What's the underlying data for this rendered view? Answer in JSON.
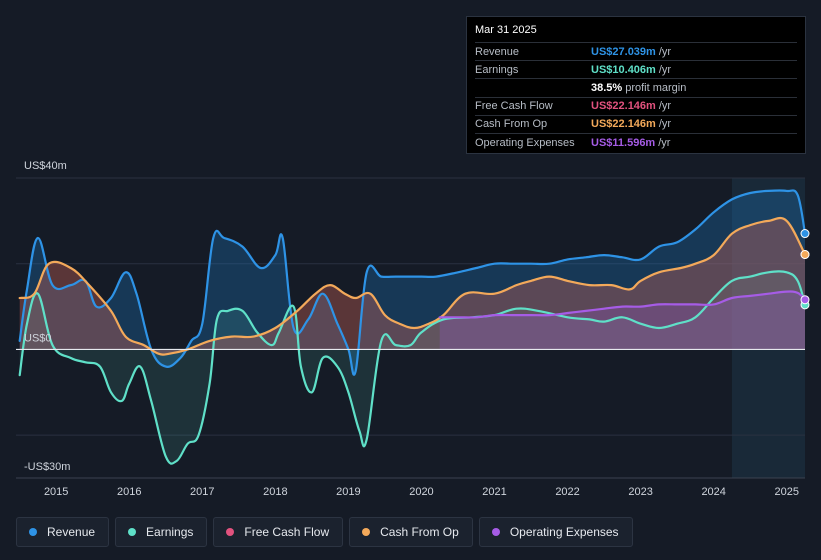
{
  "tooltip": {
    "date": "Mar 31 2025",
    "rows": [
      {
        "label": "Revenue",
        "value": "US$27.039m",
        "unit": "/yr",
        "color": "#2e93e6"
      },
      {
        "label": "Earnings",
        "value": "US$10.406m",
        "unit": "/yr",
        "color": "#5fe0c8"
      },
      {
        "label": "Free Cash Flow",
        "value": "US$22.146m",
        "unit": "/yr",
        "color": "#e2527e"
      },
      {
        "label": "Cash From Op",
        "value": "US$22.146m",
        "unit": "/yr",
        "color": "#f3a95a"
      },
      {
        "label": "Operating Expenses",
        "value": "US$11.596m",
        "unit": "/yr",
        "color": "#a65ce6"
      }
    ],
    "margin_value": "38.5%",
    "margin_label": "profit margin"
  },
  "legend": [
    {
      "label": "Revenue",
      "color": "#2e93e6"
    },
    {
      "label": "Earnings",
      "color": "#5fe0c8"
    },
    {
      "label": "Free Cash Flow",
      "color": "#e2527e"
    },
    {
      "label": "Cash From Op",
      "color": "#f3a95a"
    },
    {
      "label": "Operating Expenses",
      "color": "#a65ce6"
    }
  ],
  "chart_data": {
    "type": "line",
    "title": "",
    "ylabel": "",
    "y_labels": [
      "US$40m",
      "US$0",
      "-US$30m"
    ],
    "ylim": [
      -30,
      40
    ],
    "xlim": [
      2014.45,
      2025.25
    ],
    "x_ticks": [
      "2015",
      "2016",
      "2017",
      "2018",
      "2019",
      "2020",
      "2021",
      "2022",
      "2023",
      "2024",
      "2025"
    ],
    "x_tick_values": [
      2015,
      2016,
      2017,
      2018,
      2019,
      2020,
      2021,
      2022,
      2023,
      2024,
      2025
    ],
    "highlight_start": 2024.25,
    "series": [
      {
        "name": "Revenue",
        "color": "#2e93e6",
        "x": [
          2014.5,
          2014.6,
          2014.75,
          2014.95,
          2015.2,
          2015.4,
          2015.55,
          2015.75,
          2015.95,
          2016.1,
          2016.3,
          2016.5,
          2016.7,
          2016.85,
          2017.0,
          2017.15,
          2017.3,
          2017.55,
          2017.8,
          2018.0,
          2018.1,
          2018.25,
          2018.45,
          2018.65,
          2018.85,
          2019.0,
          2019.1,
          2019.25,
          2019.45,
          2019.65,
          2019.85,
          2020.0,
          2020.2,
          2020.5,
          2020.75,
          2021.0,
          2021.25,
          2021.5,
          2021.75,
          2022.0,
          2022.25,
          2022.5,
          2022.75,
          2023.0,
          2023.25,
          2023.5,
          2023.75,
          2024.0,
          2024.25,
          2024.5,
          2024.75,
          2025.0,
          2025.15,
          2025.25
        ],
        "values": [
          2,
          14,
          26,
          15,
          15,
          16,
          10,
          12,
          18,
          13,
          0,
          -4,
          -2,
          2,
          6,
          26,
          26,
          24,
          19,
          22,
          26,
          5,
          7,
          13,
          6,
          0,
          -5,
          18,
          17,
          17,
          17,
          17,
          17,
          18,
          19,
          20,
          20,
          20,
          20,
          21,
          21.5,
          22,
          21.5,
          21,
          24,
          25,
          28,
          32,
          35,
          36.5,
          37,
          37,
          36,
          27.04
        ]
      },
      {
        "name": "Earnings",
        "color": "#5fe0c8",
        "x": [
          2014.5,
          2014.6,
          2014.75,
          2014.95,
          2015.2,
          2015.4,
          2015.6,
          2015.75,
          2015.9,
          2016.0,
          2016.15,
          2016.3,
          2016.5,
          2016.65,
          2016.8,
          2016.95,
          2017.1,
          2017.2,
          2017.35,
          2017.55,
          2017.75,
          2017.95,
          2018.05,
          2018.25,
          2018.35,
          2018.5,
          2018.65,
          2018.85,
          2019.0,
          2019.15,
          2019.25,
          2019.45,
          2019.65,
          2019.85,
          2020.0,
          2020.3,
          2020.7,
          2021.0,
          2021.3,
          2021.6,
          2022.0,
          2022.3,
          2022.5,
          2022.75,
          2023.0,
          2023.25,
          2023.5,
          2023.75,
          2024.0,
          2024.25,
          2024.5,
          2024.75,
          2025.0,
          2025.15,
          2025.25
        ],
        "values": [
          -6,
          6,
          13,
          1,
          -2,
          -3,
          -4,
          -10,
          -12,
          -8,
          -4,
          -12,
          -25,
          -26,
          -22,
          -20,
          -8,
          7,
          9,
          9,
          4,
          1,
          4,
          10,
          -4,
          -10,
          -2,
          -4,
          -10,
          -19,
          -21,
          2,
          1,
          1,
          4,
          7,
          7.5,
          8,
          9.5,
          9,
          7.5,
          7,
          6.5,
          7.5,
          6,
          5,
          6,
          7.5,
          12,
          16,
          17,
          18,
          18,
          16,
          10.4
        ]
      },
      {
        "name": "Free Cash Flow",
        "color": "#e2527e",
        "x": [
          2014.5,
          2014.7,
          2014.9,
          2015.2,
          2015.45,
          2015.75,
          2015.95,
          2016.2,
          2016.4,
          2016.55,
          2016.8,
          2017.1,
          2017.4,
          2017.7,
          2018.0,
          2018.3,
          2018.55,
          2018.75,
          2018.95,
          2019.1,
          2019.3,
          2019.5,
          2019.7,
          2019.9,
          2020.1,
          2020.3,
          2020.6,
          2021.0,
          2021.3,
          2021.5,
          2021.75,
          2022.0,
          2022.3,
          2022.6,
          2022.85,
          2023.0,
          2023.25,
          2023.55,
          2023.75,
          2024.0,
          2024.25,
          2024.5,
          2024.75,
          2025.0,
          2025.25
        ],
        "values": [
          12,
          13,
          20,
          19,
          15,
          9,
          3,
          1,
          -1,
          -1,
          0,
          2,
          3,
          3,
          5,
          9,
          13,
          15,
          13,
          12,
          13,
          8,
          6,
          5,
          6,
          8,
          13,
          13,
          15,
          16,
          17,
          16,
          15,
          15,
          14,
          16,
          18,
          19,
          20,
          22,
          27,
          29,
          30,
          30,
          22.15
        ]
      },
      {
        "name": "Cash From Op",
        "color": "#f3a95a",
        "x": [
          2014.5,
          2014.7,
          2014.9,
          2015.2,
          2015.45,
          2015.75,
          2015.95,
          2016.2,
          2016.4,
          2016.55,
          2016.8,
          2017.1,
          2017.4,
          2017.7,
          2018.0,
          2018.3,
          2018.55,
          2018.75,
          2018.95,
          2019.1,
          2019.3,
          2019.5,
          2019.7,
          2019.9,
          2020.1,
          2020.3,
          2020.6,
          2021.0,
          2021.3,
          2021.5,
          2021.75,
          2022.0,
          2022.3,
          2022.6,
          2022.85,
          2023.0,
          2023.25,
          2023.55,
          2023.75,
          2024.0,
          2024.25,
          2024.5,
          2024.75,
          2025.0,
          2025.25
        ],
        "values": [
          12,
          13,
          20,
          19,
          15,
          9,
          3,
          1,
          -1,
          -1,
          0,
          2,
          3,
          3,
          5,
          9,
          13,
          15,
          13,
          12,
          13,
          8,
          6,
          5,
          6,
          8,
          13,
          13,
          15,
          16,
          17,
          16,
          15,
          15,
          14,
          16,
          18,
          19,
          20,
          22,
          27,
          29,
          30,
          30,
          22.15
        ]
      },
      {
        "name": "Operating Expenses",
        "color": "#a65ce6",
        "x": [
          2020.25,
          2020.5,
          2020.75,
          2021.0,
          2021.25,
          2021.5,
          2021.75,
          2022.0,
          2022.25,
          2022.5,
          2022.75,
          2023.0,
          2023.25,
          2023.5,
          2023.75,
          2024.0,
          2024.25,
          2024.5,
          2024.75,
          2025.0,
          2025.15,
          2025.25
        ],
        "values": [
          7.5,
          7.5,
          7.5,
          8,
          8,
          8,
          8,
          8.5,
          9,
          9.5,
          10,
          10,
          10.5,
          10.5,
          10.5,
          10.5,
          12,
          12.5,
          13,
          13.5,
          13.2,
          11.6
        ]
      }
    ]
  }
}
